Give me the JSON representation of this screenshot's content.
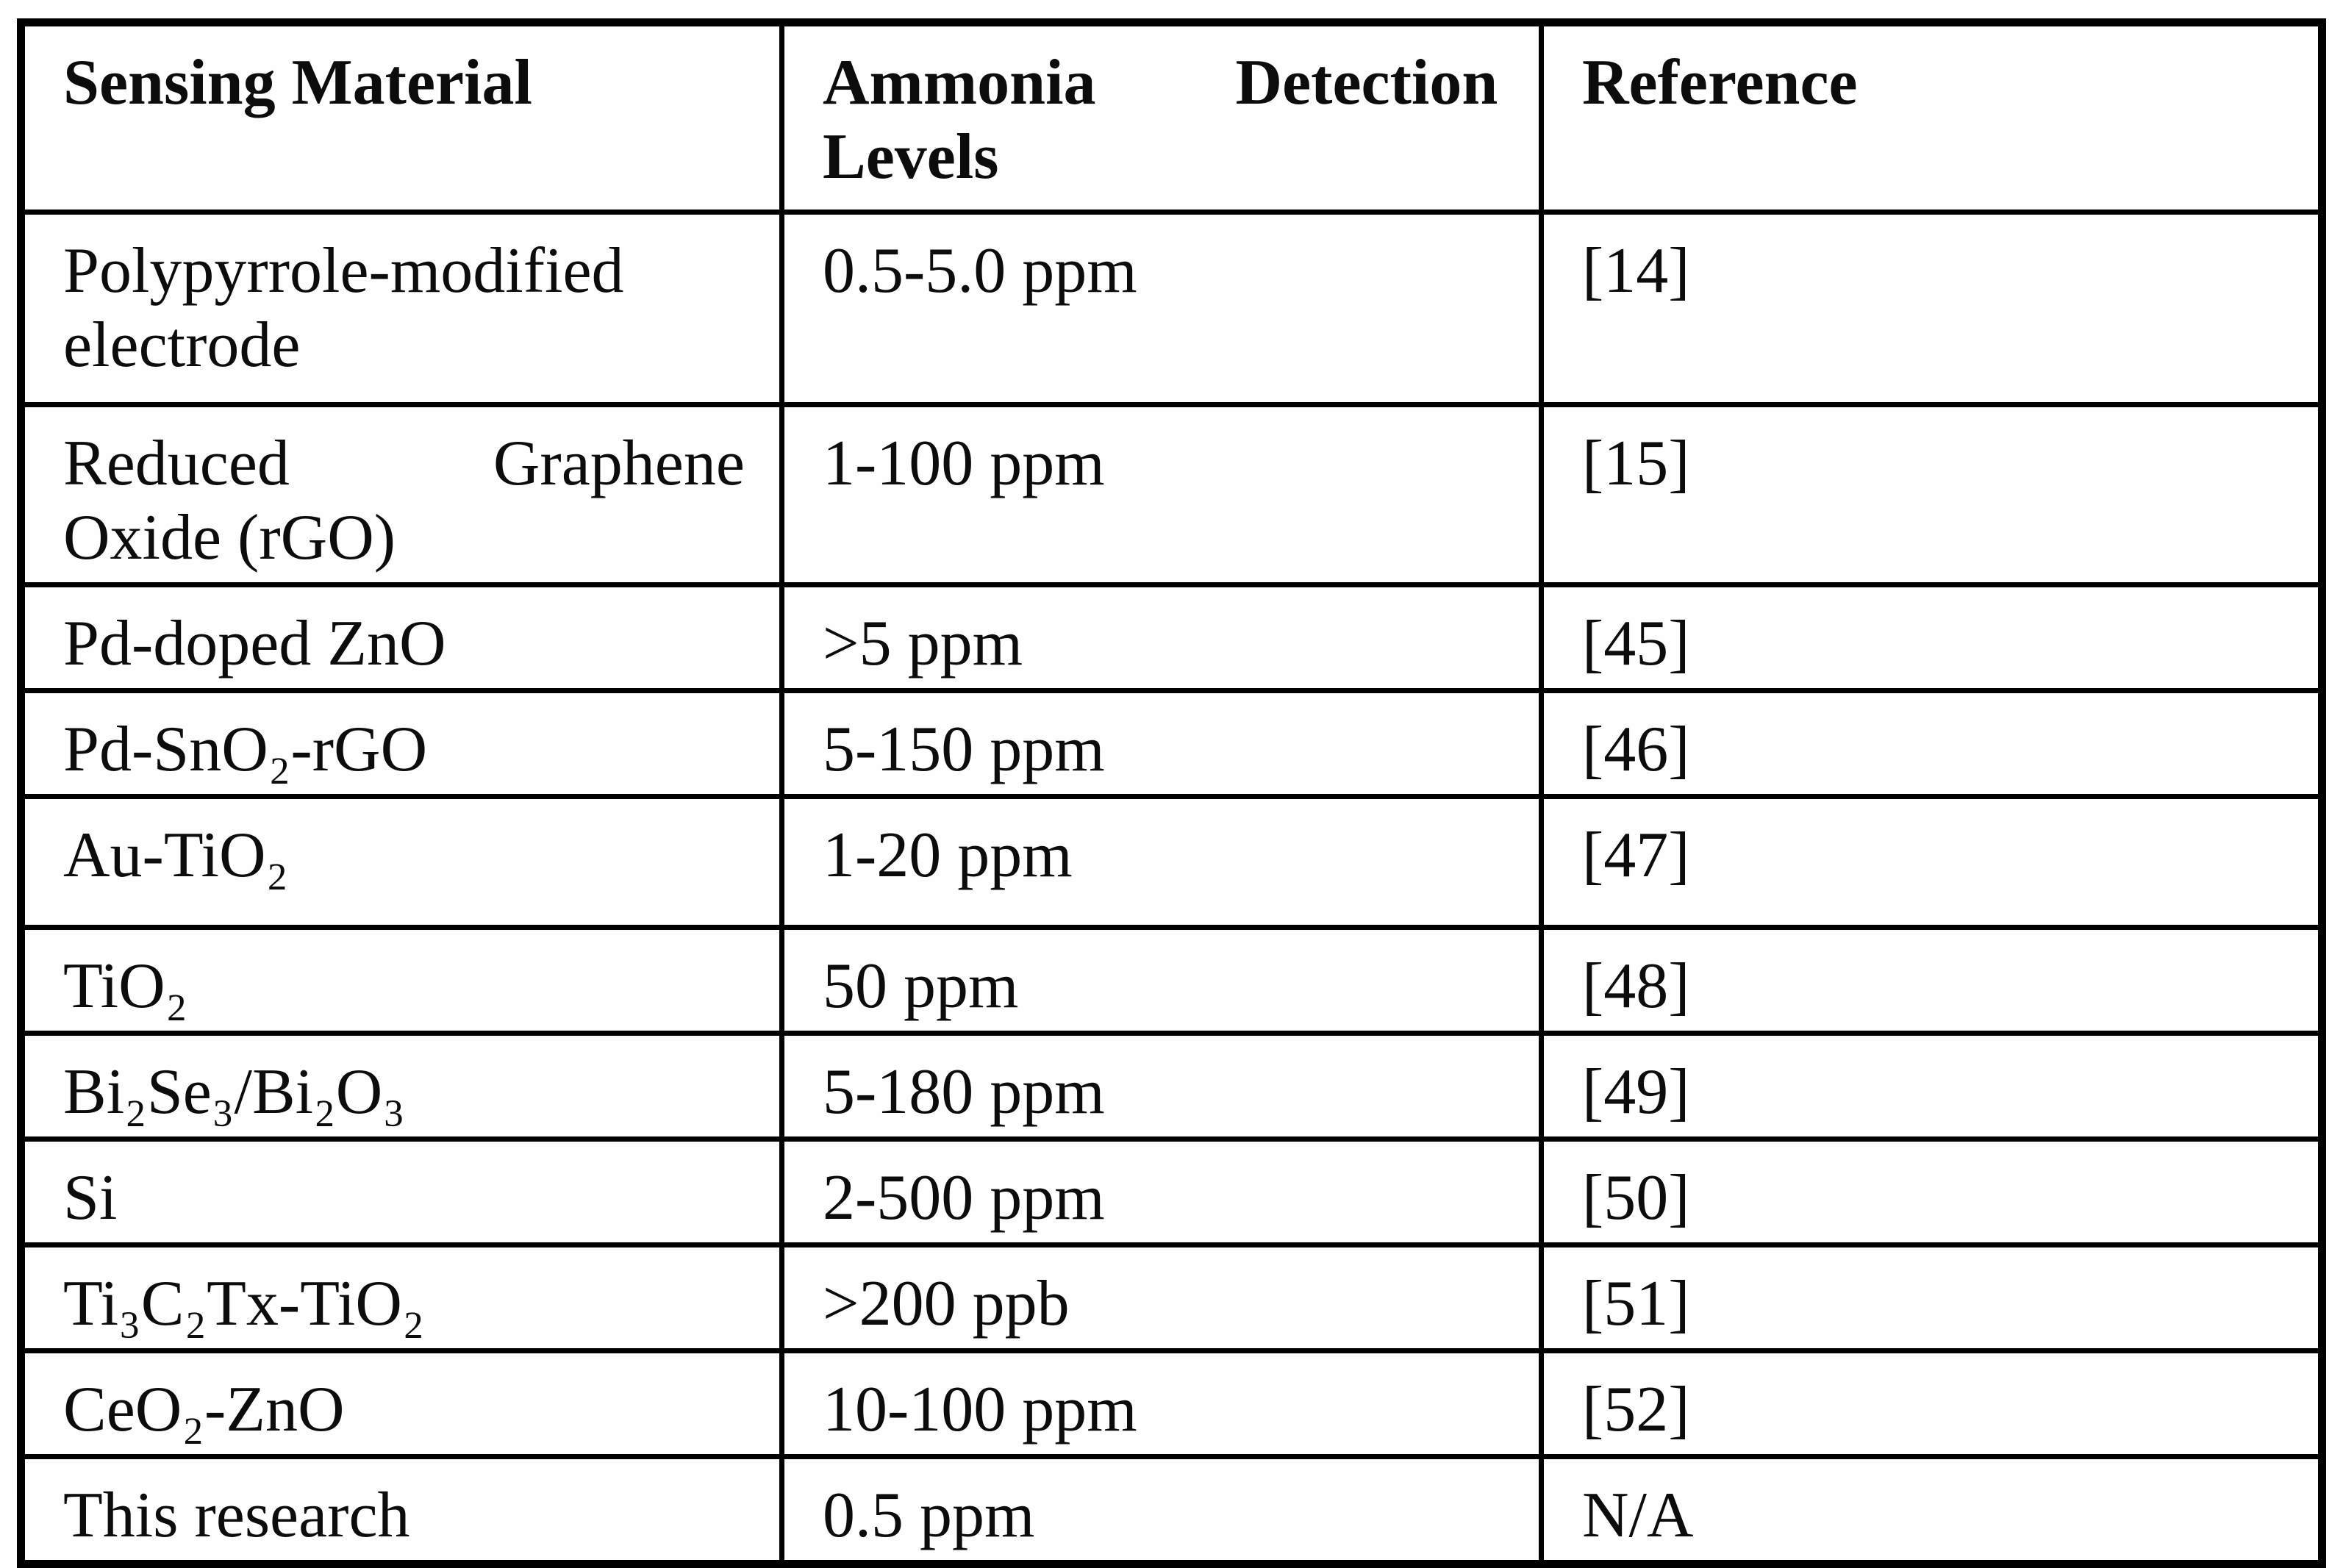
{
  "table": {
    "headers": {
      "sensing_material": "Sensing Material",
      "detection_levels": [
        "Ammonia Detection",
        "Levels"
      ],
      "reference": "Reference"
    },
    "rows": [
      {
        "material": [
          "Polypyrrole-modified",
          "electrode"
        ],
        "level": "0.5-5.0 ppm",
        "reference": "[14]"
      },
      {
        "material": [
          "Reduced Graphene",
          "Oxide (rGO)"
        ],
        "level": "1-100 ppm",
        "reference": "[15]"
      },
      {
        "material": "Pd-doped ZnO",
        "level": ">5 ppm",
        "reference": "[45]"
      },
      {
        "material": "Pd-SnO₂-rGO",
        "level": "5-150 ppm",
        "reference": "[46]"
      },
      {
        "material": "Au-TiO₂",
        "level": "1-20 ppm",
        "reference": "[47]"
      },
      {
        "material": "TiO₂",
        "level": "50 ppm",
        "reference": "[48]"
      },
      {
        "material": "Bi₂Se₃/Bi₂O₃",
        "level": "5-180 ppm",
        "reference": "[49]"
      },
      {
        "material": "Si",
        "level": "2-500 ppm",
        "reference": "[50]"
      },
      {
        "material": "Ti₃C₂Tx-TiO₂",
        "level": ">200 ppb",
        "reference": "[51]"
      },
      {
        "material": "CeO₂-ZnO",
        "level": "10-100 ppm",
        "reference": "[52]"
      },
      {
        "material": "This research",
        "level": "0.5 ppm",
        "reference": "N/A"
      }
    ]
  }
}
